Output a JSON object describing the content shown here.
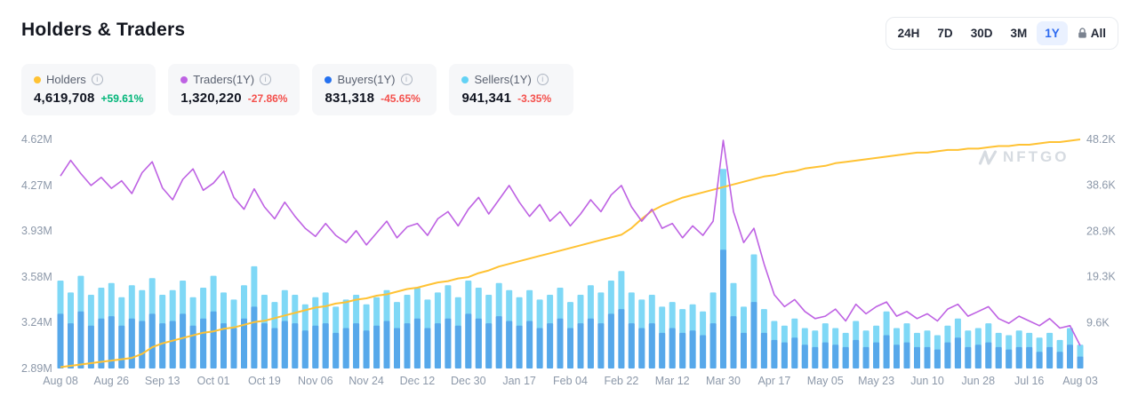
{
  "header": {
    "title": "Holders & Traders",
    "ranges": [
      {
        "label": "24H",
        "active": false,
        "locked": false
      },
      {
        "label": "7D",
        "active": false,
        "locked": false
      },
      {
        "label": "30D",
        "active": false,
        "locked": false
      },
      {
        "label": "3M",
        "active": false,
        "locked": false
      },
      {
        "label": "1Y",
        "active": true,
        "locked": false
      },
      {
        "label": "All",
        "active": false,
        "locked": true
      }
    ],
    "active_color": "#2E6BF0",
    "active_bg": "#EAF1FF"
  },
  "stats": [
    {
      "label": "Holders",
      "value": "4,619,708",
      "change": "+59.61%",
      "direction": "up",
      "color": "#FFC233"
    },
    {
      "label": "Traders(1Y)",
      "value": "1,320,220",
      "change": "-27.86%",
      "direction": "down",
      "color": "#BE62E3"
    },
    {
      "label": "Buyers(1Y)",
      "value": "831,318",
      "change": "-45.65%",
      "direction": "down",
      "color": "#2571F0"
    },
    {
      "label": "Sellers(1Y)",
      "value": "941,341",
      "change": "-3.35%",
      "direction": "down",
      "color": "#63D2F5"
    }
  ],
  "watermark": "NFTGO",
  "colors": {
    "up": "#00B578",
    "down": "#F4504C",
    "axis_text": "#8C98A9"
  },
  "chart_data": {
    "type": "combo",
    "title": "Holders & Traders",
    "grid": false,
    "legend_position": "top-cards",
    "x_tick_labels": [
      "Aug 08",
      "Aug 26",
      "Sep 13",
      "Oct 01",
      "Oct 19",
      "Nov 06",
      "Nov 24",
      "Dec 12",
      "Dec 30",
      "Jan 17",
      "Feb 04",
      "Feb 22",
      "Mar 12",
      "Mar 30",
      "Apr 17",
      "May 05",
      "May 23",
      "Jun 10",
      "Jun 28",
      "Jul 16",
      "Aug 03"
    ],
    "left_axis": {
      "unit": "M",
      "min": 2.89,
      "max": 4.62,
      "labels": [
        "4.62M",
        "4.27M",
        "3.93M",
        "3.58M",
        "3.24M",
        "2.89M"
      ],
      "values": [
        4.62,
        4.27,
        3.93,
        3.58,
        3.24,
        2.89
      ]
    },
    "right_axis": {
      "unit": "K",
      "min": 0,
      "max": 48.2,
      "labels": [
        "48.2K",
        "38.6K",
        "28.9K",
        "19.3K",
        "9.6K"
      ],
      "values": [
        48.2,
        38.6,
        28.9,
        19.3,
        9.6
      ]
    },
    "series": [
      {
        "name": "Holders",
        "type": "line",
        "axis": "left",
        "unit": "M",
        "color": "#FFC233",
        "values": [
          2.9,
          2.91,
          2.92,
          2.93,
          2.94,
          2.95,
          2.96,
          2.97,
          3.0,
          3.05,
          3.08,
          3.1,
          3.12,
          3.14,
          3.16,
          3.17,
          3.19,
          3.2,
          3.22,
          3.24,
          3.25,
          3.27,
          3.29,
          3.31,
          3.33,
          3.35,
          3.36,
          3.38,
          3.39,
          3.41,
          3.42,
          3.44,
          3.45,
          3.47,
          3.49,
          3.5,
          3.52,
          3.54,
          3.55,
          3.57,
          3.58,
          3.61,
          3.63,
          3.66,
          3.68,
          3.7,
          3.72,
          3.74,
          3.76,
          3.78,
          3.8,
          3.82,
          3.84,
          3.86,
          3.88,
          3.9,
          3.95,
          4.02,
          4.08,
          4.12,
          4.15,
          4.18,
          4.2,
          4.22,
          4.24,
          4.26,
          4.28,
          4.3,
          4.32,
          4.34,
          4.35,
          4.37,
          4.38,
          4.4,
          4.41,
          4.42,
          4.44,
          4.45,
          4.46,
          4.47,
          4.48,
          4.49,
          4.5,
          4.51,
          4.52,
          4.52,
          4.53,
          4.54,
          4.54,
          4.55,
          4.55,
          4.56,
          4.57,
          4.57,
          4.58,
          4.58,
          4.59,
          4.6,
          4.6,
          4.61,
          4.62
        ]
      },
      {
        "name": "Traders",
        "type": "line",
        "axis": "right",
        "unit": "K",
        "color": "#BE62E3",
        "values": [
          40.5,
          43.8,
          41.0,
          38.5,
          40.2,
          37.9,
          39.5,
          36.8,
          41.2,
          43.5,
          38.0,
          35.5,
          39.8,
          42.0,
          37.5,
          39.0,
          41.5,
          36.0,
          33.5,
          37.8,
          34.0,
          31.5,
          35.0,
          32.0,
          29.5,
          27.8,
          30.5,
          28.0,
          26.5,
          29.0,
          26.0,
          28.5,
          31.0,
          27.5,
          29.8,
          30.5,
          28.0,
          31.5,
          33.0,
          30.0,
          33.5,
          36.0,
          32.5,
          35.5,
          38.5,
          35.0,
          32.0,
          34.5,
          31.0,
          33.0,
          30.0,
          32.5,
          35.5,
          33.0,
          36.5,
          38.5,
          34.0,
          31.0,
          33.5,
          29.5,
          30.5,
          27.5,
          30.0,
          28.0,
          31.0,
          48.0,
          33.0,
          26.5,
          29.5,
          22.0,
          15.5,
          13.0,
          14.5,
          12.0,
          10.5,
          11.0,
          12.5,
          10.0,
          13.5,
          11.5,
          13.0,
          14.0,
          11.0,
          12.0,
          10.5,
          11.5,
          10.0,
          12.5,
          13.5,
          11.0,
          12.0,
          13.0,
          10.5,
          9.5,
          11.0,
          10.0,
          9.0,
          10.5,
          8.5,
          9.0,
          4.8
        ]
      },
      {
        "name": "Sellers",
        "type": "bar",
        "axis": "right",
        "unit": "K",
        "color": "#7FD8F6",
        "values": [
          18.5,
          16.0,
          19.5,
          15.5,
          17.0,
          18.0,
          15.0,
          17.5,
          16.5,
          19.0,
          15.5,
          16.5,
          18.5,
          15.0,
          17.0,
          19.5,
          16.0,
          14.5,
          17.5,
          21.5,
          15.5,
          14.0,
          16.5,
          15.5,
          13.5,
          15.0,
          16.0,
          13.0,
          14.5,
          15.5,
          13.5,
          15.0,
          16.5,
          14.0,
          15.5,
          17.0,
          14.5,
          16.0,
          17.5,
          15.0,
          18.5,
          17.0,
          15.5,
          18.0,
          16.5,
          15.0,
          16.5,
          14.5,
          15.5,
          17.0,
          14.0,
          15.5,
          17.5,
          16.0,
          18.5,
          20.5,
          16.0,
          14.5,
          15.5,
          13.0,
          14.0,
          12.5,
          13.5,
          12.0,
          16.0,
          42.0,
          18.0,
          13.0,
          24.0,
          12.5,
          10.0,
          9.0,
          10.5,
          8.5,
          8.0,
          9.5,
          8.5,
          7.5,
          10.0,
          8.0,
          9.0,
          12.0,
          8.5,
          9.5,
          7.5,
          8.0,
          7.0,
          9.0,
          10.5,
          8.0,
          8.5,
          9.5,
          7.5,
          7.0,
          8.0,
          7.5,
          6.5,
          7.5,
          6.0,
          8.5,
          5.0
        ]
      },
      {
        "name": "Buyers",
        "type": "bar",
        "axis": "right",
        "unit": "K",
        "color": "#57A8EA",
        "values": [
          11.5,
          9.5,
          12.0,
          9.0,
          10.5,
          11.0,
          9.0,
          10.5,
          10.0,
          11.5,
          9.5,
          10.0,
          11.5,
          9.0,
          10.5,
          12.0,
          9.5,
          8.5,
          10.5,
          13.0,
          9.5,
          8.5,
          10.0,
          9.5,
          8.0,
          9.0,
          9.5,
          7.5,
          8.5,
          9.5,
          8.0,
          9.0,
          10.0,
          8.5,
          9.5,
          10.5,
          8.5,
          9.5,
          10.5,
          9.0,
          11.5,
          10.5,
          9.5,
          11.0,
          10.0,
          9.0,
          10.0,
          8.5,
          9.5,
          10.5,
          8.5,
          9.5,
          10.5,
          9.5,
          11.5,
          12.5,
          9.5,
          8.5,
          9.5,
          7.5,
          8.5,
          7.5,
          8.0,
          7.0,
          9.5,
          25.0,
          11.0,
          7.5,
          14.0,
          7.5,
          6.0,
          5.5,
          6.5,
          5.0,
          4.5,
          5.5,
          5.0,
          4.5,
          6.0,
          4.5,
          5.5,
          7.0,
          5.0,
          5.5,
          4.5,
          4.5,
          4.0,
          5.5,
          6.5,
          4.5,
          5.0,
          5.5,
          4.5,
          4.0,
          4.5,
          4.5,
          3.5,
          4.5,
          3.5,
          5.0,
          2.5
        ]
      }
    ]
  }
}
